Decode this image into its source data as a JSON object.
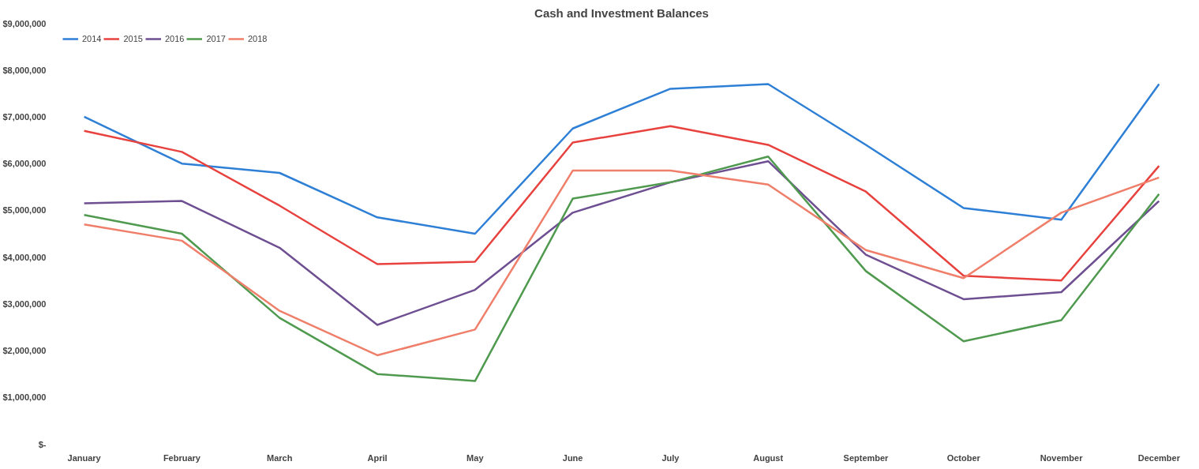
{
  "chart_data": {
    "type": "line",
    "title": "Cash and Investment Balances",
    "categories": [
      "January",
      "February",
      "March",
      "April",
      "May",
      "June",
      "July",
      "August",
      "September",
      "October",
      "November",
      "December"
    ],
    "ylim": [
      0,
      9000000
    ],
    "yticks": [
      {
        "value": 0,
        "label": "$-"
      },
      {
        "value": 1000000,
        "label": "$1,000,000"
      },
      {
        "value": 2000000,
        "label": "$2,000,000"
      },
      {
        "value": 3000000,
        "label": "$3,000,000"
      },
      {
        "value": 4000000,
        "label": "$4,000,000"
      },
      {
        "value": 5000000,
        "label": "$5,000,000"
      },
      {
        "value": 6000000,
        "label": "$6,000,000"
      },
      {
        "value": 7000000,
        "label": "$7,000,000"
      },
      {
        "value": 8000000,
        "label": "$8,000,000"
      },
      {
        "value": 9000000,
        "label": "$9,000,000"
      }
    ],
    "grid": false,
    "legend": "top left",
    "marker": "none",
    "line_style": "solid",
    "series": [
      {
        "name": "2014",
        "color": "#2e7fd6",
        "values": [
          7000000,
          6000000,
          5800000,
          4850000,
          4500000,
          6750000,
          7600000,
          7700000,
          6400000,
          5050000,
          4800000,
          7700000
        ]
      },
      {
        "name": "2015",
        "color": "#e8423f",
        "values": [
          6700000,
          6250000,
          5100000,
          3850000,
          3900000,
          6450000,
          6800000,
          6400000,
          5400000,
          3600000,
          3500000,
          5950000
        ]
      },
      {
        "name": "2016",
        "color": "#6e4f91",
        "values": [
          5150000,
          5200000,
          4200000,
          2550000,
          3300000,
          4950000,
          5600000,
          6050000,
          4050000,
          3100000,
          3250000,
          5200000
        ]
      },
      {
        "name": "2017",
        "color": "#4f9a4f",
        "values": [
          4900000,
          4500000,
          2700000,
          1500000,
          1350000,
          5250000,
          5600000,
          6150000,
          3700000,
          2200000,
          2650000,
          5350000
        ]
      },
      {
        "name": "2018",
        "color": "#ef7f6a",
        "values": [
          4700000,
          4350000,
          2850000,
          1900000,
          2450000,
          5850000,
          5850000,
          5550000,
          4150000,
          3550000,
          4950000,
          5700000
        ]
      }
    ]
  }
}
